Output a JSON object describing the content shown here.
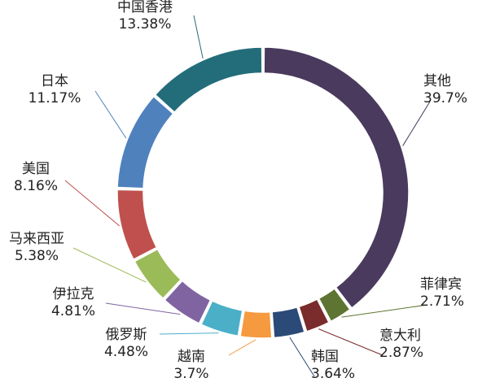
{
  "chart_data": {
    "type": "pie",
    "variant": "donut",
    "title": "",
    "legend": "none",
    "slices": [
      {
        "name": "其他",
        "value": 39.7,
        "percent_label": "39.7%",
        "color": "#4a3a5e"
      },
      {
        "name": "菲律宾",
        "value": 2.71,
        "percent_label": "2.71%",
        "color": "#5e7433"
      },
      {
        "name": "意大利",
        "value": 2.87,
        "percent_label": "2.87%",
        "color": "#7a2b2b"
      },
      {
        "name": "韩国",
        "value": 3.64,
        "percent_label": "3.64%",
        "color": "#2b4a78"
      },
      {
        "name": "越南",
        "value": 3.7,
        "percent_label": "3.7%",
        "color": "#f59a3e"
      },
      {
        "name": "俄罗斯",
        "value": 4.48,
        "percent_label": "4.48%",
        "color": "#4bafc8"
      },
      {
        "name": "伊拉克",
        "value": 4.81,
        "percent_label": "4.81%",
        "color": "#8064a2"
      },
      {
        "name": "马来西亚",
        "value": 5.38,
        "percent_label": "5.38%",
        "color": "#9bbb59"
      },
      {
        "name": "美国",
        "value": 8.16,
        "percent_label": "8.16%",
        "color": "#c0504d"
      },
      {
        "name": "日本",
        "value": 11.17,
        "percent_label": "11.17%",
        "color": "#4f81bd"
      },
      {
        "name": "中国香港",
        "value": 13.38,
        "percent_label": "13.38%",
        "color": "#236d7a"
      }
    ]
  }
}
